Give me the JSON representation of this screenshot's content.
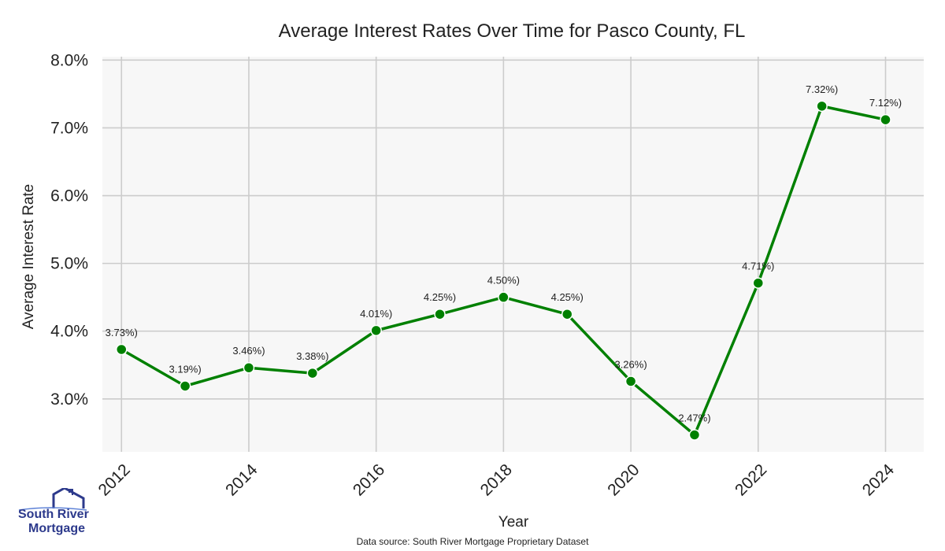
{
  "chart_data": {
    "type": "line",
    "title": "Average Interest Rates Over Time for Pasco County, FL",
    "xlabel": "Year",
    "ylabel": "Average Interest Rate",
    "x": [
      2012,
      2013,
      2014,
      2015,
      2016,
      2017,
      2018,
      2019,
      2020,
      2021,
      2022,
      2023,
      2024
    ],
    "y": [
      3.73,
      3.19,
      3.46,
      3.38,
      4.01,
      4.25,
      4.5,
      4.25,
      3.26,
      2.47,
      4.71,
      7.32,
      7.12
    ],
    "data_labels": [
      "3.73%)",
      "3.19%)",
      "3.46%)",
      "3.38%)",
      "4.01%)",
      "4.25%)",
      "4.50%)",
      "4.25%)",
      "3.26%)",
      "2.47%)",
      "4.71%)",
      "7.32%)",
      "7.12%)"
    ],
    "x_ticks": [
      "2012",
      "2014",
      "2016",
      "2018",
      "2020",
      "2022",
      "2024"
    ],
    "y_ticks": [
      "3.0%",
      "4.0%",
      "5.0%",
      "6.0%",
      "7.0%",
      "8.0%"
    ],
    "y_tick_values": [
      3.0,
      4.0,
      5.0,
      6.0,
      7.0,
      8.0
    ],
    "xlim": [
      2011.7,
      2024.6
    ],
    "ylim": [
      2.22,
      8.05
    ],
    "grid": true,
    "line_color": "#008000",
    "plot_background": "#f7f7f7",
    "grid_color": "#cccccc"
  },
  "footer": {
    "source": "Data source: South River Mortgage Proprietary Dataset"
  },
  "logo": {
    "line1": "South River",
    "line2": "Mortgage"
  }
}
